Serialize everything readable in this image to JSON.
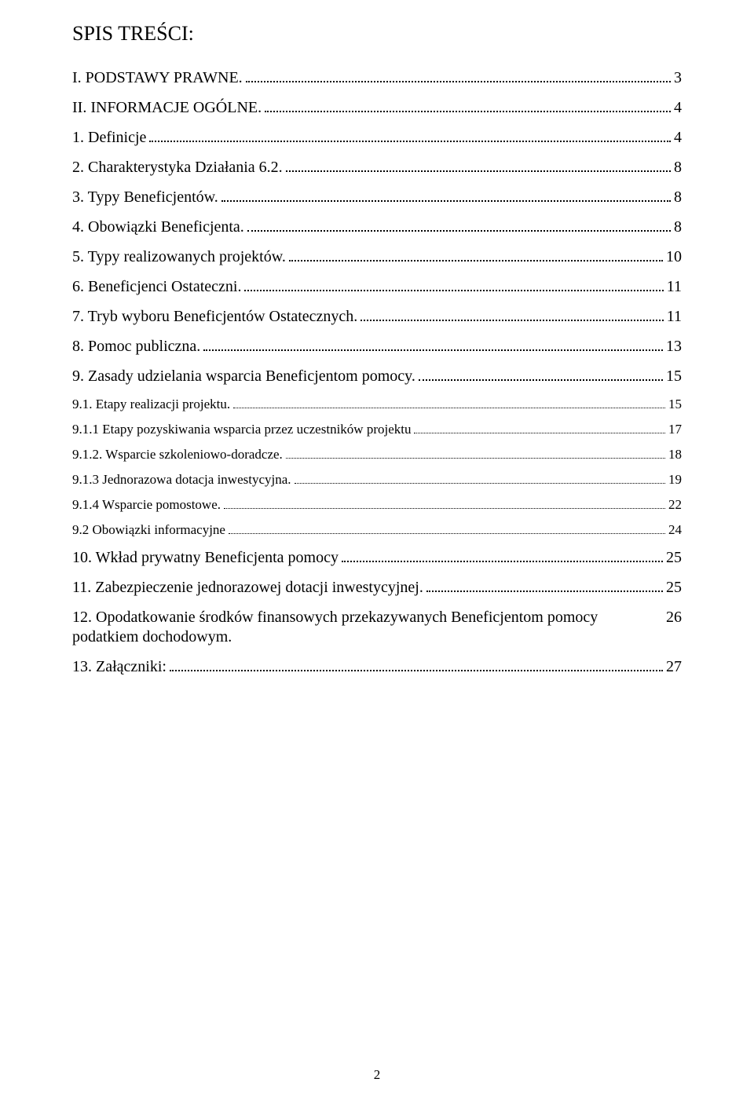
{
  "title": "SPIS TREŚCI:",
  "page_number": "2",
  "toc": [
    {
      "label": "I. PODSTAWY PRAWNE.",
      "page": "3",
      "level": 0
    },
    {
      "label": "II. INFORMACJE OGÓLNE.",
      "page": "4",
      "level": 0
    },
    {
      "label": "1. Definicje",
      "page": "4",
      "level": 0
    },
    {
      "label": "2. Charakterystyka Działania 6.2.",
      "page": "8",
      "level": 0
    },
    {
      "label": "3. Typy Beneficjentów.",
      "page": "8",
      "level": 0
    },
    {
      "label": "4. Obowiązki Beneficjenta.",
      "page": "8",
      "level": 0
    },
    {
      "label": "5. Typy realizowanych projektów.",
      "page": "10",
      "level": 0
    },
    {
      "label": "6. Beneficjenci Ostateczni.",
      "page": "11",
      "level": 0
    },
    {
      "label": "7. Tryb wyboru Beneficjentów Ostatecznych.",
      "page": "11",
      "level": 0
    },
    {
      "label": "8. Pomoc publiczna.",
      "page": "13",
      "level": 0
    },
    {
      "label": "9. Zasady udzielania wsparcia Beneficjentom pomocy.",
      "page": "15",
      "level": 0
    },
    {
      "label": "9.1. Etapy realizacji projektu.",
      "page": " 15",
      "level": 1
    },
    {
      "label": "9.1.1 Etapy pozyskiwania wsparcia przez uczestników projektu",
      "page": " 17",
      "level": 1
    },
    {
      "label": "9.1.2. Wsparcie szkoleniowo-doradcze.",
      "page": " 18",
      "level": 1
    },
    {
      "label": "9.1.3 Jednorazowa dotacja inwestycyjna.",
      "page": " 19",
      "level": 1
    },
    {
      "label": "9.1.4 Wsparcie pomostowe.",
      "page": " 22",
      "level": 1
    },
    {
      "label": "9.2 Obowiązki informacyjne",
      "page": " 24",
      "level": 1
    },
    {
      "label": "10. Wkład prywatny Beneficjenta pomocy",
      "page": "25",
      "level": 0
    },
    {
      "label": "11. Zabezpieczenie jednorazowej dotacji inwestycyjnej.",
      "page": "25",
      "level": 0
    },
    {
      "label": "12. Opodatkowanie środków finansowych przekazywanych Beneficjentom pomocy podatkiem dochodowym.",
      "page": "26",
      "level": 0
    },
    {
      "label": "13. Załączniki:",
      "page": "27",
      "level": 0
    }
  ]
}
